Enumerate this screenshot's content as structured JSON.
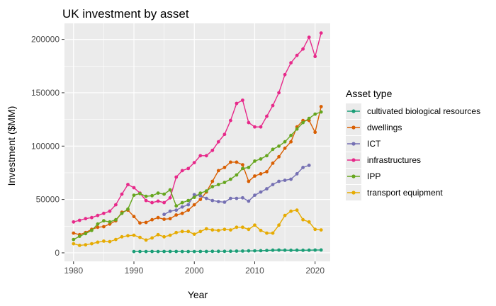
{
  "chart_data": {
    "type": "line",
    "title": "UK investment by asset",
    "xlabel": "Year",
    "ylabel": "Investment ($MM)",
    "xlim": [
      1978.5,
      2022.5
    ],
    "ylim": [
      -8000,
      215000
    ],
    "xticks": [
      1980,
      1990,
      2000,
      2010,
      2020
    ],
    "yticks": [
      0,
      50000,
      100000,
      150000,
      200000
    ],
    "xtick_labels": [
      "1980",
      "1990",
      "2000",
      "2010",
      "2020"
    ],
    "ytick_labels": [
      "0",
      "50000",
      "100000",
      "150000",
      "200000"
    ],
    "grid": true,
    "legend_position": "right",
    "legend_title": "Asset type",
    "series": [
      {
        "name": "cultivated biological resources",
        "color": "#1b9e77",
        "x": [
          1990,
          1991,
          1992,
          1993,
          1994,
          1995,
          1996,
          1997,
          1998,
          1999,
          2000,
          2001,
          2002,
          2003,
          2004,
          2005,
          2006,
          2007,
          2008,
          2009,
          2010,
          2011,
          2012,
          2013,
          2014,
          2015,
          2016,
          2017,
          2018,
          2019,
          2020,
          2021
        ],
        "y": [
          1200,
          1200,
          1200,
          1300,
          1200,
          1300,
          1300,
          1300,
          1200,
          1200,
          1200,
          1300,
          1300,
          1400,
          1400,
          1400,
          1500,
          1600,
          1700,
          1800,
          1900,
          2000,
          2200,
          2500,
          2600,
          2500,
          2400,
          2500,
          2400,
          2500,
          2600,
          2700
        ]
      },
      {
        "name": "dwellings",
        "color": "#d95f02",
        "x": [
          1980,
          1981,
          1982,
          1983,
          1984,
          1985,
          1986,
          1987,
          1988,
          1989,
          1990,
          1991,
          1992,
          1993,
          1994,
          1995,
          1996,
          1997,
          1998,
          1999,
          2000,
          2001,
          2002,
          2003,
          2004,
          2005,
          2006,
          2007,
          2008,
          2009,
          2010,
          2011,
          2012,
          2013,
          2014,
          2015,
          2016,
          2017,
          2018,
          2019,
          2020,
          2021
        ],
        "y": [
          18500,
          17000,
          19000,
          22000,
          24000,
          24500,
          27000,
          30000,
          38000,
          40000,
          34000,
          28000,
          28500,
          31000,
          33000,
          31500,
          32000,
          35500,
          37000,
          40000,
          45000,
          50000,
          57000,
          67000,
          77000,
          80000,
          85000,
          85000,
          82500,
          67000,
          72000,
          74000,
          76000,
          84000,
          90000,
          98000,
          104000,
          118000,
          124000,
          124000,
          113000,
          137000
        ]
      },
      {
        "name": "ICT",
        "color": "#7570b3",
        "x": [
          1995,
          1996,
          1997,
          1998,
          1999,
          2000,
          2001,
          2002,
          2003,
          2004,
          2005,
          2006,
          2007,
          2008,
          2009,
          2010,
          2011,
          2012,
          2013,
          2014,
          2015,
          2016,
          2017,
          2018,
          2019
        ],
        "y": [
          36000,
          39000,
          40000,
          43000,
          45000,
          54500,
          53500,
          51000,
          49000,
          48000,
          47500,
          51000,
          51000,
          51500,
          48500,
          54000,
          57000,
          60000,
          64000,
          67000,
          68000,
          69000,
          74000,
          80000,
          82000
        ]
      },
      {
        "name": "infrastructures",
        "color": "#e7298a",
        "x": [
          1980,
          1981,
          1982,
          1983,
          1984,
          1985,
          1986,
          1987,
          1988,
          1989,
          1990,
          1991,
          1992,
          1993,
          1994,
          1995,
          1996,
          1997,
          1998,
          1999,
          2000,
          2001,
          2002,
          2003,
          2004,
          2005,
          2006,
          2007,
          2008,
          2009,
          2010,
          2011,
          2012,
          2013,
          2014,
          2015,
          2016,
          2017,
          2018,
          2019,
          2020,
          2021
        ],
        "y": [
          29000,
          30500,
          32000,
          33000,
          35000,
          37000,
          39000,
          45000,
          55000,
          64000,
          61000,
          56000,
          49000,
          47000,
          48500,
          47000,
          51500,
          71000,
          77000,
          79000,
          84500,
          91000,
          91000,
          96000,
          104000,
          111000,
          124000,
          140000,
          143000,
          122000,
          118000,
          118000,
          128000,
          138000,
          150000,
          167000,
          178000,
          185000,
          191000,
          202000,
          184000,
          206000
        ]
      },
      {
        "name": "IPP",
        "color": "#66a61e",
        "x": [
          1980,
          1981,
          1982,
          1983,
          1984,
          1985,
          1986,
          1987,
          1988,
          1989,
          1990,
          1991,
          1992,
          1993,
          1994,
          1995,
          1996,
          1997,
          1998,
          1999,
          2000,
          2001,
          2002,
          2003,
          2004,
          2005,
          2006,
          2007,
          2008,
          2009,
          2010,
          2011,
          2012,
          2013,
          2014,
          2015,
          2016,
          2017,
          2018,
          2019,
          2020,
          2021
        ],
        "y": [
          12500,
          15500,
          18000,
          21000,
          27000,
          30000,
          29000,
          31000,
          37000,
          41000,
          54000,
          55500,
          53000,
          53500,
          56000,
          55000,
          59000,
          44000,
          47000,
          49000,
          52000,
          56000,
          58000,
          62000,
          64000,
          66000,
          69000,
          73000,
          79000,
          80000,
          86000,
          88000,
          91000,
          97000,
          100000,
          104000,
          110000,
          116000,
          122000,
          126000,
          130000,
          132000
        ]
      },
      {
        "name": "transport equipment",
        "color": "#e6ab02",
        "x": [
          1980,
          1981,
          1982,
          1983,
          1984,
          1985,
          1986,
          1987,
          1988,
          1989,
          1990,
          1991,
          1992,
          1993,
          1994,
          1995,
          1996,
          1997,
          1998,
          1999,
          2000,
          2001,
          2002,
          2003,
          2004,
          2005,
          2006,
          2007,
          2008,
          2009,
          2010,
          2011,
          2012,
          2013,
          2014,
          2015,
          2016,
          2017,
          2018,
          2019,
          2020,
          2021
        ],
        "y": [
          8500,
          7000,
          7500,
          8500,
          10000,
          11000,
          10500,
          12500,
          15000,
          16000,
          16500,
          14500,
          12000,
          14000,
          17000,
          15000,
          16500,
          19000,
          20000,
          20000,
          17500,
          20000,
          22500,
          21500,
          21000,
          22000,
          21500,
          24000,
          24000,
          22000,
          26000,
          21000,
          18500,
          18500,
          26000,
          35000,
          39000,
          40000,
          31000,
          29000,
          22000,
          21500
        ]
      }
    ]
  }
}
